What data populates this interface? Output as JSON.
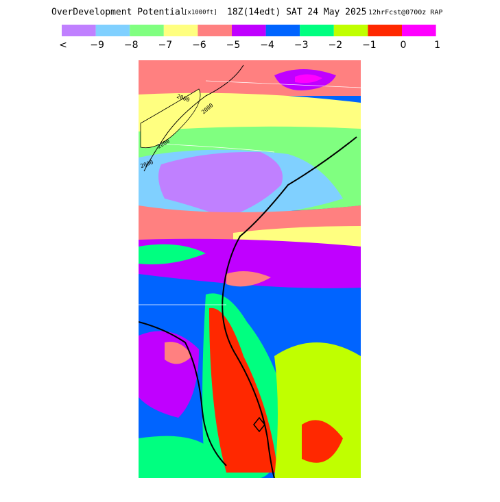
{
  "header": {
    "title": "OverDevelopment Potential",
    "units": "[x1000ft]",
    "time": "18Z(14edt) SAT 24 May 2025",
    "model": "12hrFcst@0700z RAP"
  },
  "legend": {
    "colors": [
      "#c080ff",
      "#80d0ff",
      "#80ff80",
      "#ffff80",
      "#ff8080",
      "#c000ff",
      "#0064ff",
      "#00ff80",
      "#c0ff00",
      "#ff2800",
      "#ff00ff"
    ],
    "labels": [
      "<",
      "−9",
      "−8",
      "−7",
      "−6",
      "−5",
      "−4",
      "−3",
      "−2",
      "−1",
      "0",
      "1"
    ]
  },
  "map": {
    "contour_labels": [
      "2000",
      "2000",
      "2000",
      "2000"
    ]
  }
}
